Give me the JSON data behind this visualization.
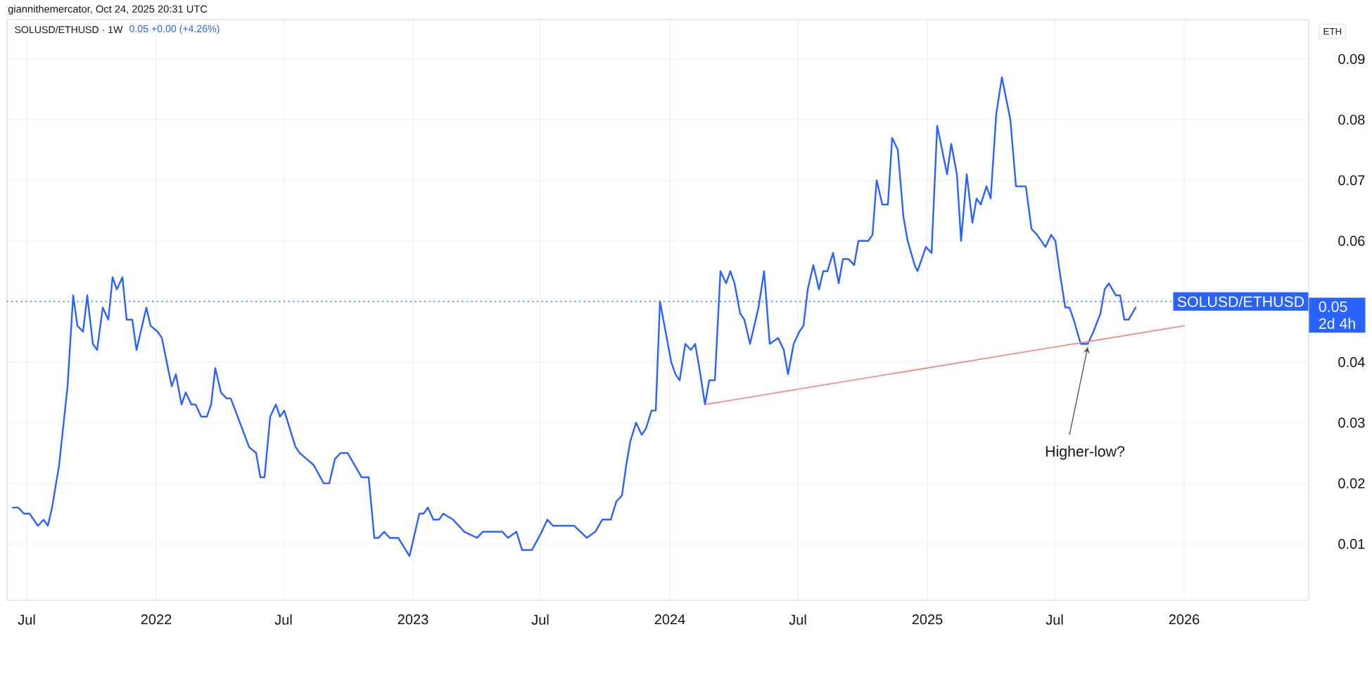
{
  "chart_data": {
    "type": "line",
    "title": "SOLUSD/ETHUSD · 1W",
    "subtitle": "0.05 +0.00 (+4.26%)",
    "ylabel": "ETH",
    "annotations": [
      "giannithemercator, Oct 24, 2025 20:31 UTC",
      "0.05",
      "2d 4h",
      {
        "text": "Higher-low?",
        "x": "2025-08-17",
        "y": 0.043
      }
    ],
    "x": [
      "2021-06-11",
      "2021-06-19",
      "2021-06-27",
      "2021-07-05",
      "2021-07-17",
      "2021-07-25",
      "2021-07-31",
      "2021-08-06",
      "2021-08-16",
      "2021-08-28",
      "2021-09-05",
      "2021-09-11",
      "2021-09-19",
      "2021-09-25",
      "2021-10-03",
      "2021-10-09",
      "2021-10-17",
      "2021-10-25",
      "2021-10-31",
      "2021-11-06",
      "2021-11-14",
      "2021-11-20",
      "2021-11-28",
      "2021-12-04",
      "2021-12-18",
      "2021-12-24",
      "2022-01-03",
      "2022-01-09",
      "2022-01-23",
      "2022-01-29",
      "2022-02-06",
      "2022-02-12",
      "2022-02-20",
      "2022-02-26",
      "2022-03-06",
      "2022-03-14",
      "2022-03-20",
      "2022-03-26",
      "2022-04-03",
      "2022-04-11",
      "2022-04-17",
      "2022-05-13",
      "2022-05-23",
      "2022-05-29",
      "2022-06-04",
      "2022-06-12",
      "2022-06-20",
      "2022-06-26",
      "2022-07-02",
      "2022-07-18",
      "2022-07-24",
      "2022-08-03",
      "2022-08-13",
      "2022-08-27",
      "2022-09-04",
      "2022-09-12",
      "2022-09-20",
      "2022-09-30",
      "2022-10-20",
      "2022-10-30",
      "2022-11-07",
      "2022-11-13",
      "2022-11-21",
      "2022-11-29",
      "2022-12-11",
      "2022-12-27",
      "2023-01-10",
      "2023-01-16",
      "2023-01-22",
      "2023-01-30",
      "2023-02-07",
      "2023-02-13",
      "2023-02-27",
      "2023-03-15",
      "2023-04-02",
      "2023-04-10",
      "2023-04-18",
      "2023-04-26",
      "2023-05-08",
      "2023-05-16",
      "2023-05-28",
      "2023-06-05",
      "2023-06-19",
      "2023-07-03",
      "2023-07-11",
      "2023-07-19",
      "2023-08-02",
      "2023-08-08",
      "2023-08-18",
      "2023-09-05",
      "2023-09-17",
      "2023-09-27",
      "2023-10-09",
      "2023-10-17",
      "2023-10-25",
      "2023-10-31",
      "2023-11-06",
      "2023-11-14",
      "2023-11-22",
      "2023-11-28",
      "2023-12-06",
      "2023-12-12",
      "2023-12-18",
      "2023-12-26",
      "2024-01-03",
      "2024-01-09",
      "2024-01-15",
      "2024-01-23",
      "2024-01-31",
      "2024-02-06",
      "2024-02-12",
      "2024-02-20",
      "2024-02-26",
      "2024-03-05",
      "2024-03-13",
      "2024-03-21",
      "2024-03-27",
      "2024-04-02",
      "2024-04-10",
      "2024-04-16",
      "2024-04-24",
      "2024-04-30",
      "2024-05-06",
      "2024-05-14",
      "2024-05-22",
      "2024-06-03",
      "2024-06-11",
      "2024-06-17",
      "2024-06-25",
      "2024-07-03",
      "2024-07-09",
      "2024-07-15",
      "2024-07-23",
      "2024-07-31",
      "2024-08-06",
      "2024-08-12",
      "2024-08-20",
      "2024-08-28",
      "2024-09-03",
      "2024-09-11",
      "2024-09-19",
      "2024-09-25",
      "2024-10-01",
      "2024-10-09",
      "2024-10-15",
      "2024-10-21",
      "2024-10-29",
      "2024-11-06",
      "2024-11-12",
      "2024-11-20",
      "2024-11-28",
      "2024-12-04",
      "2024-12-14",
      "2024-12-18",
      "2024-12-30",
      "2025-01-07",
      "2025-01-15",
      "2025-01-29",
      "2025-02-04",
      "2025-02-12",
      "2025-02-18",
      "2025-02-26",
      "2025-03-06",
      "2025-03-12",
      "2025-03-18",
      "2025-03-26",
      "2025-04-01",
      "2025-04-09",
      "2025-04-17",
      "2025-04-29",
      "2025-05-07",
      "2025-05-13",
      "2025-05-21",
      "2025-05-29",
      "2025-06-06",
      "2025-06-18",
      "2025-06-26",
      "2025-07-02",
      "2025-07-08",
      "2025-07-16",
      "2025-07-22",
      "2025-07-28",
      "2025-08-07",
      "2025-08-17",
      "2025-08-25",
      "2025-09-04",
      "2025-09-10",
      "2025-09-16",
      "2025-09-26",
      "2025-10-02",
      "2025-10-08",
      "2025-10-14",
      "2025-10-24"
    ],
    "series": [
      {
        "color": "#2962ff",
        "values": [
          0.016,
          0.016,
          0.015,
          0.015,
          0.013,
          0.014,
          0.013,
          0.016,
          0.023,
          0.036,
          0.051,
          0.046,
          0.045,
          0.051,
          0.043,
          0.042,
          0.049,
          0.047,
          0.054,
          0.052,
          0.054,
          0.047,
          0.047,
          0.042,
          0.049,
          0.046,
          0.045,
          0.044,
          0.036,
          0.038,
          0.033,
          0.035,
          0.033,
          0.033,
          0.031,
          0.031,
          0.033,
          0.039,
          0.035,
          0.034,
          0.034,
          0.026,
          0.025,
          0.021,
          0.021,
          0.031,
          0.033,
          0.031,
          0.032,
          0.026,
          0.025,
          0.024,
          0.023,
          0.02,
          0.02,
          0.024,
          0.025,
          0.025,
          0.021,
          0.021,
          0.011,
          0.011,
          0.012,
          0.011,
          0.011,
          0.008,
          0.015,
          0.015,
          0.016,
          0.014,
          0.014,
          0.015,
          0.014,
          0.012,
          0.011,
          0.012,
          0.012,
          0.012,
          0.012,
          0.011,
          0.012,
          0.009,
          0.009,
          0.012,
          0.014,
          0.013,
          0.013,
          0.013,
          0.013,
          0.011,
          0.012,
          0.014,
          0.014,
          0.017,
          0.018,
          0.023,
          0.027,
          0.03,
          0.028,
          0.029,
          0.032,
          0.032,
          0.05,
          0.045,
          0.04,
          0.038,
          0.037,
          0.043,
          0.042,
          0.043,
          0.039,
          0.033,
          0.037,
          0.037,
          0.055,
          0.053,
          0.055,
          0.053,
          0.048,
          0.047,
          0.043,
          0.046,
          0.049,
          0.055,
          0.043,
          0.044,
          0.042,
          0.038,
          0.043,
          0.045,
          0.046,
          0.052,
          0.056,
          0.052,
          0.055,
          0.055,
          0.058,
          0.053,
          0.057,
          0.057,
          0.056,
          0.06,
          0.06,
          0.06,
          0.061,
          0.07,
          0.066,
          0.066,
          0.077,
          0.075,
          0.064,
          0.06,
          0.056,
          0.055,
          0.059,
          0.058,
          0.079,
          0.071,
          0.076,
          0.071,
          0.06,
          0.071,
          0.063,
          0.067,
          0.066,
          0.069,
          0.067,
          0.081,
          0.087,
          0.08,
          0.069,
          0.069,
          0.069,
          0.062,
          0.061,
          0.059,
          0.061,
          0.06,
          0.055,
          0.049,
          0.049,
          0.047,
          0.043,
          0.043,
          0.045,
          0.048,
          0.052,
          0.053,
          0.051,
          0.051,
          0.047,
          0.047,
          0.049
        ]
      },
      {
        "color": "#f77c80",
        "x": [
          "2024-02-20",
          "2026-01-01"
        ],
        "values": [
          0.033,
          0.046
        ]
      }
    ],
    "ref_lines": [
      {
        "axis": "y",
        "value": 0.05,
        "label": "SOLUSD/ETHUSD",
        "color": "#2962ff",
        "line_style": "dotted"
      }
    ],
    "xlim": [
      "2021-06-03",
      "2026-06-27"
    ],
    "ylim": [
      0.0007,
      0.0965
    ],
    "xticks": [
      {
        "value": "2021-07-01",
        "label": "Jul"
      },
      {
        "value": "2022-01-01",
        "label": "2022"
      },
      {
        "value": "2022-07-01",
        "label": "Jul"
      },
      {
        "value": "2023-01-01",
        "label": "2023"
      },
      {
        "value": "2023-07-01",
        "label": "Jul"
      },
      {
        "value": "2024-01-01",
        "label": "2024"
      },
      {
        "value": "2024-07-01",
        "label": "Jul"
      },
      {
        "value": "2025-01-01",
        "label": "2025"
      },
      {
        "value": "2025-07-01",
        "label": "Jul"
      },
      {
        "value": "2026-01-01",
        "label": "2026"
      }
    ],
    "yticks": [
      0.01,
      0.02,
      0.03,
      0.04,
      0.06,
      0.07,
      0.08,
      0.09
    ],
    "grid": true,
    "marker": "none",
    "line_style": "solid"
  }
}
